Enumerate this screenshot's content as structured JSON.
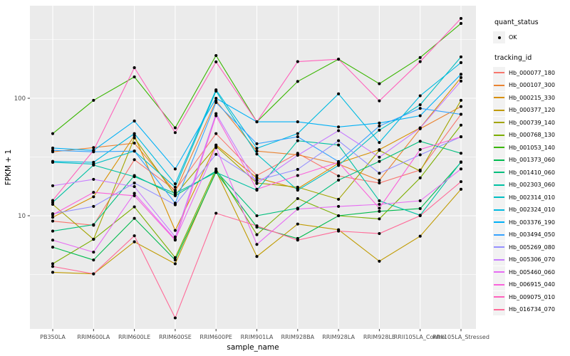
{
  "figure": {
    "background": "#FFFFFF",
    "panel_background": "#EBEBEB",
    "grid_color": "#FFFFFF",
    "tick_color": "#333333",
    "tick_label_color": "#4D4D4D",
    "point_color": "#000000",
    "legend_key_background": "#F2F2F2"
  },
  "legend": {
    "quant_status_title": "quant_status",
    "quant_status_items": [
      {
        "label": "OK"
      }
    ],
    "tracking_id_title": "tracking_id"
  },
  "chart_data": {
    "type": "line",
    "title": "",
    "xlabel": "sample_name",
    "ylabel": "FPKM + 1",
    "y_scale": "log10",
    "y_ticks": [
      10,
      100
    ],
    "y_minor_ticks": [
      3.16,
      31.6,
      316
    ],
    "ylim": [
      1.09,
      613
    ],
    "grid": true,
    "legend_position": "right",
    "point_shape": "solid-circle",
    "categories": [
      "PB350LA",
      "RRIM600LA",
      "RRIM600LE",
      "RRIM600SE",
      "RRIM600PE",
      "RRIM901LA",
      "RRIM928BA",
      "RRIM928LA",
      "RRIM928LE",
      "RRII105LA_Control",
      "RRII105LA_Stressed"
    ],
    "series": [
      {
        "name": "Hb_000077_180",
        "color": "#F8766D",
        "values": [
          9.0,
          8.3,
          30,
          16.5,
          50,
          22,
          34,
          21.8,
          19,
          24.5,
          73
        ]
      },
      {
        "name": "Hb_000107_300",
        "color": "#EA8331",
        "values": [
          35,
          38,
          41.5,
          16,
          95,
          35.5,
          33,
          27.5,
          20,
          55,
          85
        ]
      },
      {
        "name": "Hb_000215_330",
        "color": "#D89000",
        "values": [
          9.7,
          14.5,
          48,
          7.5,
          40,
          21,
          17,
          28,
          36.5,
          56,
          150
        ]
      },
      {
        "name": "Hb_000377_120",
        "color": "#C09B00",
        "values": [
          3.3,
          3.2,
          6.0,
          3.9,
          24,
          4.5,
          8.5,
          7.6,
          4.1,
          6.7,
          16.8
        ]
      },
      {
        "name": "Hb_000739_140",
        "color": "#A3A500",
        "values": [
          12.5,
          6.3,
          46,
          15,
          39,
          19,
          17.5,
          13.8,
          36,
          24,
          96
        ]
      },
      {
        "name": "Hb_000768_130",
        "color": "#7CAE00",
        "values": [
          3.9,
          6.3,
          11.9,
          4.4,
          25,
          6.9,
          14,
          10,
          9.4,
          21,
          59
        ]
      },
      {
        "name": "Hb_001053_140",
        "color": "#39B600",
        "values": [
          50,
          96,
          152,
          56,
          231,
          63,
          139,
          215,
          133,
          222,
          433
        ]
      },
      {
        "name": "Hb_001373_060",
        "color": "#00BB4E",
        "values": [
          5.4,
          4.2,
          9.5,
          4.2,
          23.5,
          8.0,
          6.4,
          10,
          10.9,
          11.5,
          28.5
        ]
      },
      {
        "name": "Hb_001410_060",
        "color": "#00BF7D",
        "values": [
          7.4,
          8.4,
          22,
          14.8,
          24,
          10,
          11.6,
          20.1,
          29,
          43,
          34
        ]
      },
      {
        "name": "Hb_002303_060",
        "color": "#00C1A3",
        "values": [
          13,
          27,
          21.5,
          15.5,
          23.4,
          16.5,
          43.5,
          40,
          13.4,
          10.1,
          28.7
        ]
      },
      {
        "name": "Hb_002314_010",
        "color": "#00BFC4",
        "values": [
          28.5,
          27.5,
          35.5,
          17.5,
          115,
          33.5,
          16.5,
          26.8,
          53.5,
          88,
          225
        ]
      },
      {
        "name": "Hb_002324_010",
        "color": "#00BAE0",
        "values": [
          29,
          28.5,
          50,
          18.7,
          118,
          37.5,
          50,
          109,
          42,
          105,
          201
        ]
      },
      {
        "name": "Hb_003376_190",
        "color": "#00B0F6",
        "values": [
          37.7,
          36,
          64,
          25,
          100,
          63,
          63,
          57,
          61.5,
          71,
          160
        ]
      },
      {
        "name": "Hb_003494_050",
        "color": "#35A2FF",
        "values": [
          36,
          35,
          35.5,
          12.8,
          92,
          41,
          47,
          28.9,
          58,
          82,
          73
        ]
      },
      {
        "name": "Hb_005269_080",
        "color": "#9590FF",
        "values": [
          10.4,
          12,
          19,
          12.4,
          33.3,
          20,
          24.8,
          43.5,
          23,
          33,
          47
        ]
      },
      {
        "name": "Hb_005306_070",
        "color": "#C77CFF",
        "values": [
          18,
          20.4,
          17.7,
          6.6,
          74,
          18.8,
          32.7,
          53,
          31.5,
          55.8,
          140
        ]
      },
      {
        "name": "Hb_005460_060",
        "color": "#E76BF3",
        "values": [
          6.2,
          4.9,
          15.5,
          6.3,
          38,
          5.7,
          11.4,
          12,
          12.5,
          13.4,
          25
        ]
      },
      {
        "name": "Hb_006915_040",
        "color": "#FA62DB",
        "values": [
          10.2,
          15.8,
          14.8,
          6.2,
          71,
          16.8,
          22,
          28.5,
          11.6,
          36.6,
          47
        ]
      },
      {
        "name": "Hb_009075_010",
        "color": "#FF62BC",
        "values": [
          13.5,
          36,
          182,
          51,
          204,
          63,
          205,
          215,
          95,
          205,
          478
        ]
      },
      {
        "name": "Hb_016734_070",
        "color": "#FF6A98",
        "values": [
          3.7,
          3.2,
          6.75,
          1.35,
          10.5,
          8.2,
          6.2,
          7.4,
          7.05,
          10,
          19.5
        ]
      }
    ]
  }
}
